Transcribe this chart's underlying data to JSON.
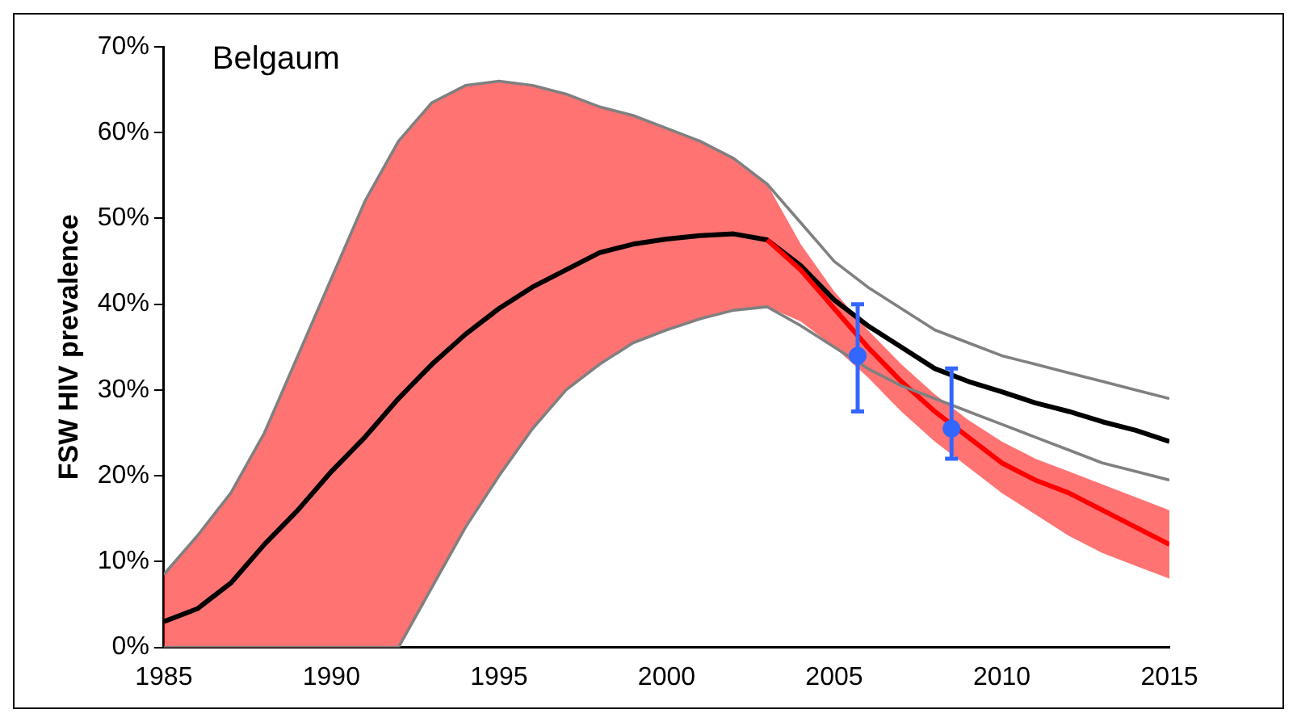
{
  "chart_data": {
    "type": "line",
    "title": "Belgaum",
    "ylabel": "FSW HIV prevalence",
    "x": [
      1985,
      1986,
      1987,
      1988,
      1989,
      1990,
      1991,
      1992,
      1993,
      1994,
      1995,
      1996,
      1997,
      1998,
      1999,
      2000,
      2001,
      2002,
      2003,
      2004,
      2005,
      2006,
      2007,
      2008,
      2009,
      2010,
      2011,
      2012,
      2013,
      2014,
      2015
    ],
    "series": [
      {
        "color": "#808080",
        "values": [
          8.5,
          13,
          18,
          25,
          34,
          43,
          52,
          59,
          63.5,
          65.5,
          66,
          65.5,
          64.5,
          63,
          62,
          60.5,
          59,
          57,
          54,
          49.5,
          45,
          42,
          39.5,
          37,
          35.5,
          34,
          33,
          32,
          31,
          30,
          29
        ]
      },
      {
        "color": "#808080",
        "values": [
          0,
          0,
          0,
          0,
          0,
          0,
          0,
          0,
          7,
          14,
          20,
          25.5,
          30,
          33,
          35.5,
          37,
          38.3,
          39.3,
          39.7,
          37.5,
          35,
          32.5,
          30.5,
          29,
          27.5,
          26,
          24.5,
          23,
          21.5,
          20.5,
          19.5
        ]
      },
      {
        "color": "#ff0000",
        "values": [
          null,
          null,
          null,
          null,
          null,
          null,
          null,
          null,
          null,
          null,
          null,
          null,
          null,
          null,
          null,
          null,
          null,
          null,
          47.5,
          44,
          39.5,
          35,
          31,
          27.5,
          24.5,
          21.5,
          19.5,
          18,
          16,
          14,
          12
        ],
        "lower": [
          0,
          0,
          0,
          0,
          0,
          0,
          0,
          0,
          7,
          14,
          20,
          25.5,
          30,
          33,
          35.5,
          37,
          38.3,
          39.3,
          39.7,
          38,
          35,
          31.5,
          27.5,
          24,
          21,
          18,
          15.5,
          13,
          11,
          9.5,
          8
        ],
        "upper": [
          8.5,
          13,
          18,
          25,
          34,
          43,
          52,
          59,
          63.5,
          65.5,
          66,
          65.5,
          64.5,
          63,
          62,
          60.5,
          59,
          57,
          54,
          47,
          41.5,
          37,
          33,
          29.5,
          26.5,
          24,
          22,
          20.5,
          19,
          17.5,
          16
        ]
      },
      {
        "color": "#000000",
        "values": [
          3,
          4.5,
          7.5,
          12,
          16,
          20.5,
          24.5,
          29,
          33,
          36.5,
          39.5,
          42,
          44,
          46,
          47,
          47.6,
          48,
          48.2,
          47.5,
          44.5,
          40.5,
          37.5,
          35,
          32.5,
          31,
          29.8,
          28.5,
          27.5,
          26.3,
          25.3,
          24
        ]
      },
      {
        "type": "scatter",
        "color": "#3366ff",
        "x": [
          2005.7,
          2008.5
        ],
        "values": [
          34,
          25.5
        ],
        "errors": [
          [
            27.5,
            40
          ],
          [
            22,
            32.5
          ]
        ]
      }
    ],
    "xlim": [
      1985,
      2015
    ],
    "xticks": [
      1985,
      1990,
      1995,
      2000,
      2005,
      2010,
      2015
    ],
    "ylim": [
      0,
      70
    ],
    "yticks": [
      {
        "value": 0,
        "label": "0%"
      },
      {
        "value": 10,
        "label": "10%"
      },
      {
        "value": 20,
        "label": "20%"
      },
      {
        "value": 30,
        "label": "30%"
      },
      {
        "value": 40,
        "label": "40%"
      },
      {
        "value": 50,
        "label": "50%"
      },
      {
        "value": 60,
        "label": "60%"
      },
      {
        "value": 70,
        "label": "70%"
      }
    ],
    "grid": false,
    "legend": false
  }
}
